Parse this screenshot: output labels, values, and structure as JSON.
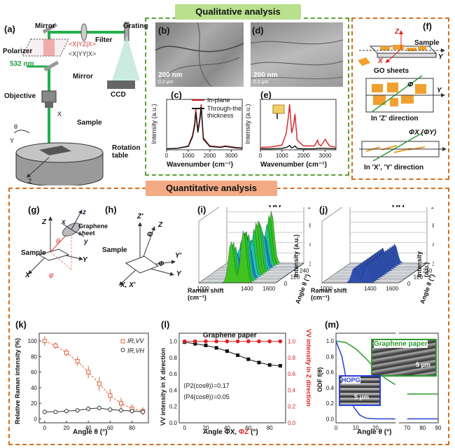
{
  "qualitative": {
    "title": "Qualitative analysis",
    "a": {
      "label": "(a)",
      "mirror_top": "Mirror",
      "filter": "Filter",
      "grating": "Grating",
      "polarizer": "Polarizer",
      "pol1": "<X|YZ|X>",
      "pol2": "<X|YY|X>",
      "ccd": "CCD",
      "laser": "532 nm",
      "mirror_mid": "Mirror",
      "objective": "Objective",
      "x": "X",
      "theta": "θ",
      "y": "Y",
      "z": "Z",
      "sample": "Sample",
      "rotation_table": "Rotation table"
    },
    "b": {
      "label": "(b)",
      "scale": "200 nm",
      "scale2": "0.2 μm"
    },
    "d": {
      "label": "(d)",
      "scale": "200 nm",
      "scale2": "0.2 μm"
    },
    "c": {
      "label": "(c)",
      "ylabel": "Intensity (a.u.)",
      "xlabel": "Wavenumber (cm⁻¹)",
      "legend_in": "In-plane",
      "legend_thru": "Through-the thickness",
      "xticks": [
        "0",
        "1000",
        "2000",
        "3000"
      ]
    },
    "e": {
      "label": "(e)",
      "ylabel": "Intensity (a.u.)",
      "xlabel": "Wavenumber (cm⁻¹)",
      "xticks": [
        "0",
        "1000",
        "2000",
        "3000"
      ]
    }
  },
  "f": {
    "label": "(f)",
    "z": "Z",
    "x": "X",
    "y": "Y",
    "sample": "Sample",
    "go": "GO sheets",
    "phi": "Φ",
    "inz": "In 'Z' direction",
    "phixy": "ΦX (ΦY)",
    "inxy": "In 'X', 'Y' direction"
  },
  "quantitative": {
    "title": "Quantitative analysis",
    "g": {
      "label": "(g)",
      "z": "Z",
      "z2": "z",
      "x2": "x",
      "y2": "y",
      "graphene": "Graphene sheet",
      "theta": "θ",
      "sample": "Sample",
      "y": "Y",
      "x": "X",
      "phi": "φ"
    },
    "h": {
      "label": "(h)",
      "z1": "Z'",
      "z2": "Z",
      "phi": "Φ",
      "sample": "Sample",
      "y1": "Y'",
      "y2": "Y",
      "xx": "X, X'"
    },
    "i": {
      "label": "(i)",
      "mode": "VV",
      "zlabel": "Intensity (a.u.)",
      "raman": "Raman shift (cm⁻¹)",
      "angle": "Angle θ (°)",
      "zticks": [
        "0",
        "40",
        "80",
        "120"
      ],
      "aticks": [
        "0",
        "120",
        "240",
        "360"
      ],
      "rticks": [
        "1000",
        "1400",
        "1600"
      ]
    },
    "j": {
      "label": "(j)",
      "mode": "VH",
      "zlabel": "Intensity (a.u.)",
      "raman": "Raman shift (cm⁻¹)",
      "angle": "Angle θ (°)",
      "zticks": [
        "0",
        "40",
        "80",
        "120"
      ],
      "aticks": [
        "0",
        "120",
        "240",
        "360"
      ],
      "rticks": [
        "1000",
        "1400",
        "1600"
      ]
    },
    "k": {
      "label": "(k)",
      "ylabel": "Relative Raman intensity (%)",
      "xlabel": "Angle θ (°)",
      "leg_vv": "IR,VV",
      "leg_vh": "IR,VH"
    },
    "l": {
      "label": "(l)",
      "title": "Graphene paper",
      "ylabel": "VV intensity in X direction",
      "ylabel2": "VV intensity in Z direction",
      "xlabel_a": "Angle ΦX, ",
      "xlabel_b": "ΦZ",
      "xlabel_c": " (°)",
      "p2": "⟨P2(cosθ)⟩=0.17",
      "p4": "⟨P4(cosθ)⟩=0.05"
    },
    "m": {
      "label": "(m)",
      "ylabel": "ODF f(θ)",
      "xlabel": "Angle θ (°)",
      "graphene": "Graphene paper",
      "hopg": "HOPG",
      "scale": "5 μm",
      "scale2": "5 μm"
    }
  },
  "chart_data": [
    {
      "type": "line",
      "title": "",
      "panel": "(c)",
      "xlabel": "Wavenumber (cm⁻¹)",
      "ylabel": "Intensity (a.u.)",
      "xlim": [
        0,
        3500
      ],
      "series": [
        {
          "name": "In-plane",
          "color": "#d42020",
          "x": [
            0,
            500,
            1000,
            1200,
            1300,
            1350,
            1450,
            1550,
            1600,
            1700,
            2000,
            2500,
            2700,
            2900,
            3200,
            3500
          ],
          "y": [
            0.02,
            0.03,
            0.08,
            0.3,
            0.55,
            0.85,
            0.4,
            0.7,
            0.95,
            0.25,
            0.08,
            0.06,
            0.08,
            0.07,
            0.05,
            0.04
          ]
        },
        {
          "name": "Through-the thickness",
          "color": "#111111",
          "x": [
            0,
            500,
            1000,
            1200,
            1300,
            1350,
            1450,
            1550,
            1600,
            1700,
            2000,
            2500,
            2700,
            2900,
            3200,
            3500
          ],
          "y": [
            0.02,
            0.03,
            0.07,
            0.27,
            0.5,
            0.78,
            0.36,
            0.65,
            0.9,
            0.22,
            0.07,
            0.05,
            0.07,
            0.06,
            0.04,
            0.03
          ]
        }
      ]
    },
    {
      "type": "line",
      "title": "",
      "panel": "(e)",
      "xlabel": "Wavenumber (cm⁻¹)",
      "ylabel": "Intensity (a.u.)",
      "xlim": [
        0,
        3500
      ],
      "series": [
        {
          "name": "In-plane",
          "color": "#d42020",
          "x": [
            0,
            500,
            1000,
            1200,
            1300,
            1350,
            1450,
            1550,
            1600,
            1700,
            2000,
            2500,
            2650,
            2700,
            2800,
            3000,
            3200,
            3500
          ],
          "y": [
            0.05,
            0.06,
            0.1,
            0.35,
            0.7,
            0.95,
            0.35,
            0.55,
            0.75,
            0.2,
            0.08,
            0.08,
            0.2,
            0.12,
            0.08,
            0.22,
            0.08,
            0.05
          ]
        },
        {
          "name": "Through-the thickness",
          "color": "#111111",
          "x": [
            0,
            500,
            1000,
            1200,
            1300,
            1350,
            1450,
            1550,
            1600,
            1700,
            2000,
            2500,
            2700,
            3000,
            3500
          ],
          "y": [
            0.02,
            0.02,
            0.03,
            0.05,
            0.07,
            0.09,
            0.04,
            0.06,
            0.08,
            0.03,
            0.02,
            0.02,
            0.03,
            0.03,
            0.02
          ]
        }
      ]
    },
    {
      "type": "scatter",
      "title": "",
      "panel": "(k)",
      "xlabel": "Angle θ (°)",
      "ylabel": "Relative Raman intensity (%)",
      "xlim": [
        -5,
        95
      ],
      "ylim": [
        -5,
        110
      ],
      "xticks": [
        0,
        20,
        40,
        60,
        80
      ],
      "yticks": [
        0,
        20,
        40,
        60,
        80,
        100
      ],
      "series": [
        {
          "name": "IR,VV",
          "color": "#e0603a",
          "x": [
            0,
            10,
            20,
            30,
            40,
            50,
            60,
            70,
            80,
            90
          ],
          "y": [
            100,
            94,
            85,
            74,
            60,
            45,
            30,
            20,
            13,
            10
          ],
          "err": [
            6,
            4,
            5,
            6,
            8,
            9,
            8,
            7,
            6,
            5
          ]
        },
        {
          "name": "IR,VH",
          "color": "#333333",
          "x": [
            0,
            10,
            20,
            30,
            40,
            50,
            60,
            70,
            80,
            90
          ],
          "y": [
            9,
            9,
            10,
            11,
            13,
            14,
            12,
            11,
            10,
            9
          ],
          "err": [
            3,
            2,
            3,
            3,
            3,
            3,
            3,
            3,
            3,
            3
          ]
        }
      ]
    },
    {
      "type": "scatter",
      "title": "Graphene paper",
      "panel": "(l)",
      "xlabel": "Angle ΦX, ΦZ (°)",
      "ylabel": "VV intensity in X direction",
      "ylabel_right": "VV intensity in Z direction",
      "xlim": [
        -5,
        95
      ],
      "ylim": [
        0,
        1.1
      ],
      "xticks": [
        0,
        20,
        40,
        60,
        80
      ],
      "yticks": [
        0.0,
        0.2,
        0.4,
        0.6,
        0.8,
        1.0
      ],
      "series": [
        {
          "name": "X direction",
          "color": "#111111",
          "x": [
            0,
            10,
            20,
            30,
            40,
            50,
            60,
            70,
            80,
            90
          ],
          "y": [
            0.99,
            0.97,
            0.95,
            0.92,
            0.88,
            0.83,
            0.78,
            0.74,
            0.71,
            0.7
          ]
        },
        {
          "name": "Z direction",
          "color": "#e02020",
          "x": [
            0,
            10,
            20,
            30,
            40,
            50,
            60,
            70,
            80,
            90
          ],
          "y": [
            1.0,
            1.0,
            1.0,
            1.0,
            1.0,
            1.0,
            1.0,
            1.0,
            1.0,
            1.0
          ]
        }
      ]
    },
    {
      "type": "line",
      "title": "",
      "panel": "(m)",
      "xlabel": "Angle θ (°)",
      "ylabel": "ODF f(θ)",
      "xticks": [
        0,
        10,
        20,
        70,
        80,
        90
      ],
      "yticks": [
        0.0,
        0.2,
        0.4,
        0.6,
        0.8,
        1.0
      ],
      "series": [
        {
          "name": "Graphene paper",
          "color": "#2c9a2c",
          "x": [
            0,
            5,
            10,
            15,
            20,
            25,
            30,
            70,
            80,
            90
          ],
          "y": [
            1.0,
            0.98,
            0.9,
            0.78,
            0.64,
            0.52,
            0.44,
            0.32,
            0.32,
            0.32
          ]
        },
        {
          "name": "HOPG",
          "color": "#2a3fd8",
          "x": [
            0,
            3,
            6,
            9,
            12,
            15,
            20,
            30,
            70,
            90
          ],
          "y": [
            1.0,
            0.8,
            0.4,
            0.15,
            0.05,
            0.01,
            0.0,
            0.0,
            0.0,
            0.0
          ]
        }
      ]
    }
  ]
}
